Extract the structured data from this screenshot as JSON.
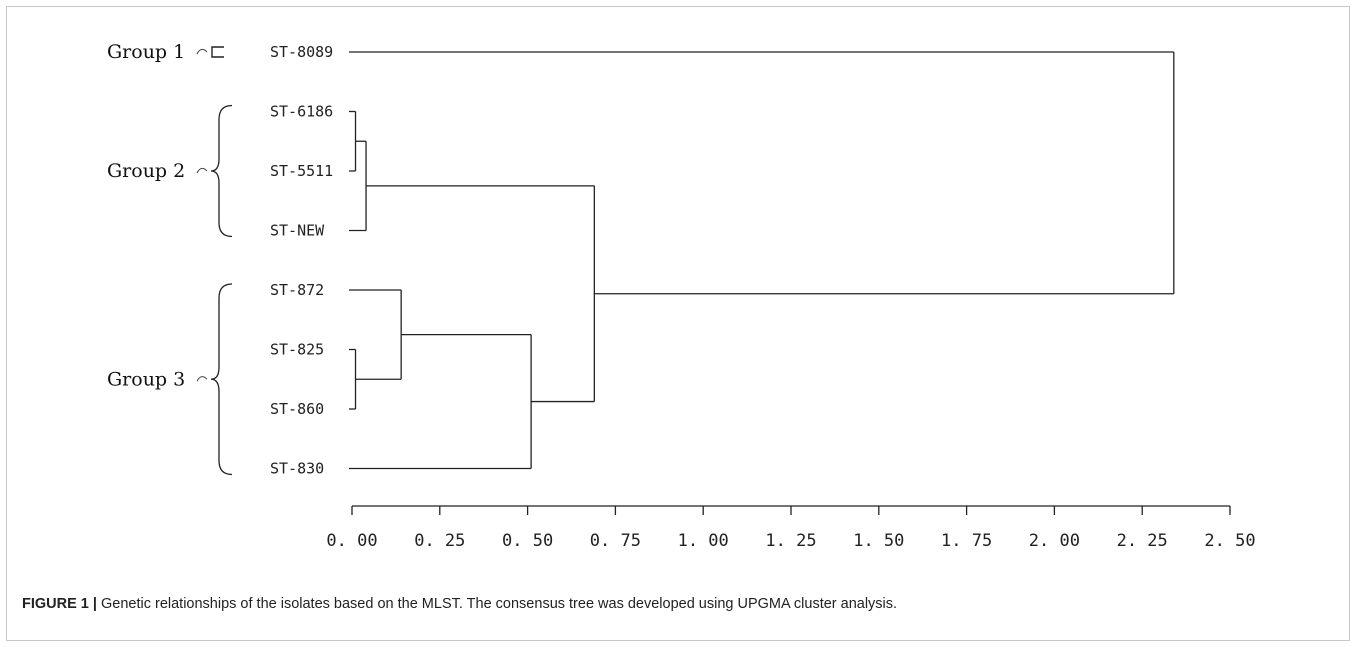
{
  "leaves": [
    "ST-8089",
    "ST-6186",
    "ST-5511",
    "ST-NEW",
    "ST-872",
    "ST-825",
    "ST-860",
    "ST-830"
  ],
  "groups": [
    {
      "label": "Group 1",
      "members": [
        "ST-8089"
      ],
      "bracket": "square"
    },
    {
      "label": "Group 2",
      "members": [
        "ST-6186",
        "ST-5511",
        "ST-NEW"
      ],
      "bracket": "brace"
    },
    {
      "label": "Group 3",
      "members": [
        "ST-872",
        "ST-825",
        "ST-860",
        "ST-830"
      ],
      "bracket": "brace"
    }
  ],
  "axis": {
    "ticks": [
      "0. 00",
      "0. 25",
      "0. 50",
      "0. 75",
      "1. 00",
      "1. 25",
      "1. 50",
      "1. 75",
      "2. 00",
      "2. 25",
      "2. 50"
    ],
    "min": 0,
    "max": 2.5
  },
  "tree": {
    "merges": [
      {
        "id": "m1",
        "children": [
          "ST-6186",
          "ST-5511"
        ],
        "height": 0.01
      },
      {
        "id": "m2",
        "children": [
          "m1",
          "ST-NEW"
        ],
        "height": 0.04
      },
      {
        "id": "m3",
        "children": [
          "ST-825",
          "ST-860"
        ],
        "height": 0.01
      },
      {
        "id": "m4",
        "children": [
          "ST-872",
          "m3"
        ],
        "height": 0.14
      },
      {
        "id": "m5",
        "children": [
          "m4",
          "ST-830"
        ],
        "height": 0.51
      },
      {
        "id": "m6",
        "children": [
          "m2",
          "m5"
        ],
        "height": 0.69
      },
      {
        "id": "m7",
        "children": [
          "ST-8089",
          "m6"
        ],
        "height": 2.34
      }
    ]
  },
  "caption": {
    "label": "FIGURE 1 |",
    "text": " Genetic relationships of the isolates based on the MLST. The consensus tree was developed using UPGMA cluster analysis."
  }
}
